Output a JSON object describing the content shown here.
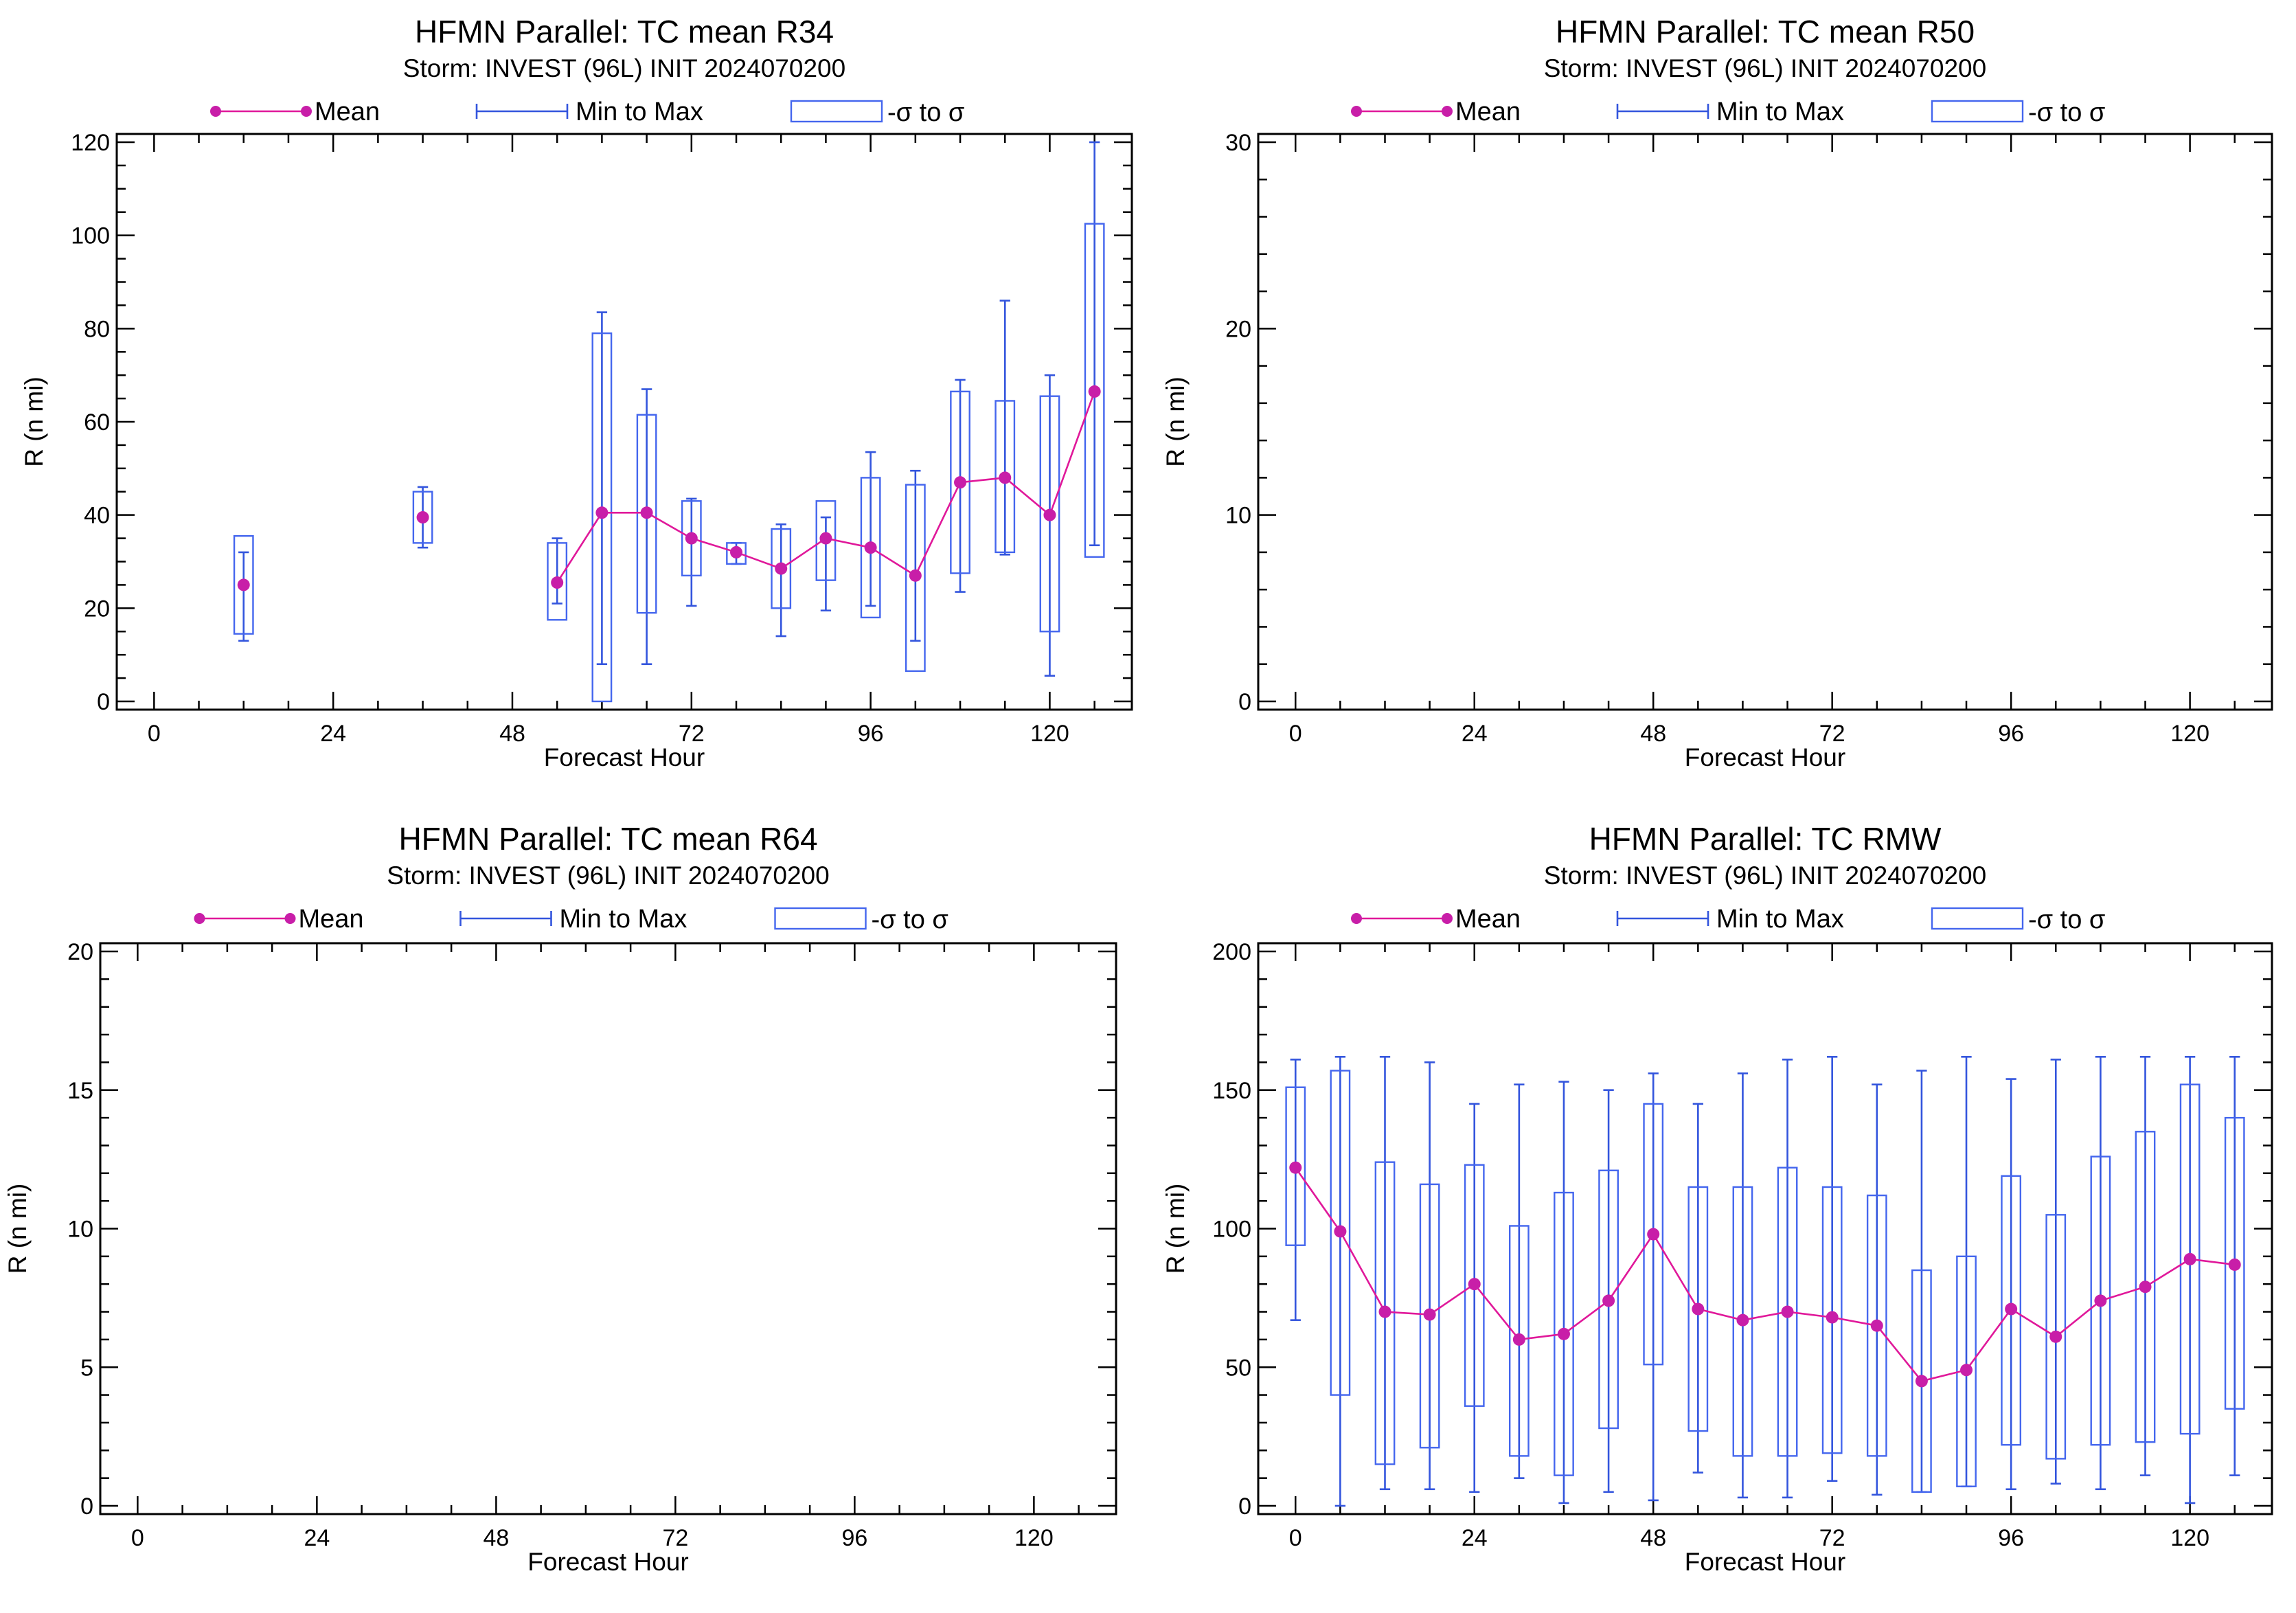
{
  "legend": {
    "mean": "Mean",
    "minmax": "Min to Max",
    "sigma": "-σ to σ",
    "colors": {
      "mean": "#e0189a",
      "minmax": "#3355dd",
      "sigma": "#4466ee"
    }
  },
  "chart_data": [
    {
      "id": "r34",
      "type": "box",
      "title": "HFMN Parallel: TC mean R34",
      "subtitle": "Storm: INVEST (96L) INIT 2024070200",
      "xlabel": "Forecast Hour",
      "ylabel": "R (n mi)",
      "xlim": [
        -5,
        131
      ],
      "ylim": [
        0,
        120
      ],
      "xticks": [
        0,
        24,
        48,
        72,
        96,
        120
      ],
      "yticks": [
        0,
        20,
        40,
        60,
        80,
        100,
        120
      ],
      "y_minor": 5,
      "points": [
        {
          "x": 12,
          "mean": 25,
          "min": 13,
          "max": 32,
          "sdlo": 14.5,
          "sdhi": 35.5
        },
        {
          "x": 36,
          "mean": 39.5,
          "min": 33,
          "max": 46,
          "sdlo": 34,
          "sdhi": 45
        },
        {
          "x": 54,
          "mean": 25.5,
          "min": 21,
          "max": 35,
          "sdlo": 17.5,
          "sdhi": 34
        },
        {
          "x": 60,
          "mean": 40.5,
          "min": 8,
          "max": 83.5,
          "sdlo": 0,
          "sdhi": 79
        },
        {
          "x": 66,
          "mean": 40.5,
          "min": 8,
          "max": 67,
          "sdlo": 19,
          "sdhi": 61.5
        },
        {
          "x": 72,
          "mean": 35,
          "min": 20.5,
          "max": 43.5,
          "sdlo": 27,
          "sdhi": 43
        },
        {
          "x": 78,
          "mean": 32,
          "min": 29.5,
          "max": 34,
          "sdlo": 29.5,
          "sdhi": 34
        },
        {
          "x": 84,
          "mean": 28.5,
          "min": 14,
          "max": 38,
          "sdlo": 20,
          "sdhi": 37
        },
        {
          "x": 90,
          "mean": 35,
          "min": 19.5,
          "max": 39.5,
          "sdlo": 26,
          "sdhi": 43
        },
        {
          "x": 96,
          "mean": 33,
          "min": 20.5,
          "max": 53.5,
          "sdlo": 18,
          "sdhi": 48
        },
        {
          "x": 102,
          "mean": 27,
          "min": 13,
          "max": 49.5,
          "sdlo": 6.5,
          "sdhi": 46.5
        },
        {
          "x": 108,
          "mean": 47,
          "min": 23.5,
          "max": 69,
          "sdlo": 27.5,
          "sdhi": 66.5
        },
        {
          "x": 114,
          "mean": 48,
          "min": 31.5,
          "max": 86,
          "sdlo": 32,
          "sdhi": 64.5
        },
        {
          "x": 120,
          "mean": 40,
          "min": 5.5,
          "max": 70,
          "sdlo": 15,
          "sdhi": 65.5
        },
        {
          "x": 126,
          "mean": 66.5,
          "min": 33.5,
          "max": 120,
          "sdlo": 31,
          "sdhi": 102.5
        }
      ],
      "mean_line_segments": [
        [
          54,
          60,
          66,
          72,
          78,
          84,
          90,
          96,
          102,
          108,
          114,
          120,
          126
        ]
      ]
    },
    {
      "id": "r50",
      "type": "box",
      "title": "HFMN Parallel: TC mean R50",
      "subtitle": "Storm: INVEST (96L) INIT 2024070200",
      "xlabel": "Forecast Hour",
      "ylabel": "R (n mi)",
      "xlim": [
        -5,
        131
      ],
      "ylim": [
        0,
        30
      ],
      "xticks": [
        0,
        24,
        48,
        72,
        96,
        120
      ],
      "yticks": [
        0,
        10,
        20,
        30
      ],
      "y_minor": 2,
      "points": [],
      "mean_line_segments": []
    },
    {
      "id": "r64",
      "type": "box",
      "title": "HFMN Parallel: TC mean R64",
      "subtitle": "Storm: INVEST (96L) INIT 2024070200",
      "xlabel": "Forecast Hour",
      "ylabel": "R (n mi)",
      "xlim": [
        -5,
        131
      ],
      "ylim": [
        0,
        20
      ],
      "xticks": [
        0,
        24,
        48,
        72,
        96,
        120
      ],
      "yticks": [
        0,
        5,
        10,
        15,
        20
      ],
      "y_minor": 1,
      "points": [],
      "mean_line_segments": []
    },
    {
      "id": "rmw",
      "type": "box",
      "title": "HFMN Parallel: TC RMW",
      "subtitle": "Storm: INVEST (96L) INIT 2024070200",
      "xlabel": "Forecast Hour",
      "ylabel": "R (n mi)",
      "xlim": [
        -5,
        131
      ],
      "ylim": [
        0,
        200
      ],
      "xticks": [
        0,
        24,
        48,
        72,
        96,
        120
      ],
      "yticks": [
        0,
        50,
        100,
        150,
        200
      ],
      "y_minor": 10,
      "points": [
        {
          "x": 0,
          "mean": 122,
          "min": 67,
          "max": 161,
          "sdlo": 94,
          "sdhi": 151
        },
        {
          "x": 6,
          "mean": 99,
          "min": 0,
          "max": 162,
          "sdlo": 40,
          "sdhi": 157
        },
        {
          "x": 12,
          "mean": 70,
          "min": 6,
          "max": 162,
          "sdlo": 15,
          "sdhi": 124
        },
        {
          "x": 18,
          "mean": 69,
          "min": 6,
          "max": 160,
          "sdlo": 21,
          "sdhi": 116
        },
        {
          "x": 24,
          "mean": 80,
          "min": 5,
          "max": 145,
          "sdlo": 36,
          "sdhi": 123
        },
        {
          "x": 30,
          "mean": 60,
          "min": 10,
          "max": 152,
          "sdlo": 18,
          "sdhi": 101
        },
        {
          "x": 36,
          "mean": 62,
          "min": 1,
          "max": 153,
          "sdlo": 11,
          "sdhi": 113
        },
        {
          "x": 42,
          "mean": 74,
          "min": 5,
          "max": 150,
          "sdlo": 28,
          "sdhi": 121
        },
        {
          "x": 48,
          "mean": 98,
          "min": 2,
          "max": 156,
          "sdlo": 51,
          "sdhi": 145
        },
        {
          "x": 54,
          "mean": 71,
          "min": 12,
          "max": 145,
          "sdlo": 27,
          "sdhi": 115
        },
        {
          "x": 60,
          "mean": 67,
          "min": 3,
          "max": 156,
          "sdlo": 18,
          "sdhi": 115
        },
        {
          "x": 66,
          "mean": 70,
          "min": 3,
          "max": 161,
          "sdlo": 18,
          "sdhi": 122
        },
        {
          "x": 72,
          "mean": 68,
          "min": 9,
          "max": 162,
          "sdlo": 19,
          "sdhi": 115
        },
        {
          "x": 78,
          "mean": 65,
          "min": 4,
          "max": 152,
          "sdlo": 18,
          "sdhi": 112
        },
        {
          "x": 84,
          "mean": 45,
          "min": 5,
          "max": 157,
          "sdlo": 5,
          "sdhi": 85
        },
        {
          "x": 90,
          "mean": 49,
          "min": 7,
          "max": 162,
          "sdlo": 7,
          "sdhi": 90
        },
        {
          "x": 96,
          "mean": 71,
          "min": 6,
          "max": 154,
          "sdlo": 22,
          "sdhi": 119
        },
        {
          "x": 102,
          "mean": 61,
          "min": 8,
          "max": 161,
          "sdlo": 17,
          "sdhi": 105
        },
        {
          "x": 108,
          "mean": 74,
          "min": 6,
          "max": 162,
          "sdlo": 22,
          "sdhi": 126
        },
        {
          "x": 114,
          "mean": 79,
          "min": 11,
          "max": 162,
          "sdlo": 23,
          "sdhi": 135
        },
        {
          "x": 120,
          "mean": 89,
          "min": 1,
          "max": 162,
          "sdlo": 26,
          "sdhi": 152
        },
        {
          "x": 126,
          "mean": 87,
          "min": 11,
          "max": 162,
          "sdlo": 35,
          "sdhi": 140
        }
      ],
      "mean_line_segments": [
        [
          0,
          6,
          12,
          18,
          24,
          30,
          36,
          42,
          48,
          54,
          60,
          66,
          72,
          78,
          84,
          90,
          96,
          102,
          108,
          114,
          120,
          126
        ]
      ]
    }
  ]
}
